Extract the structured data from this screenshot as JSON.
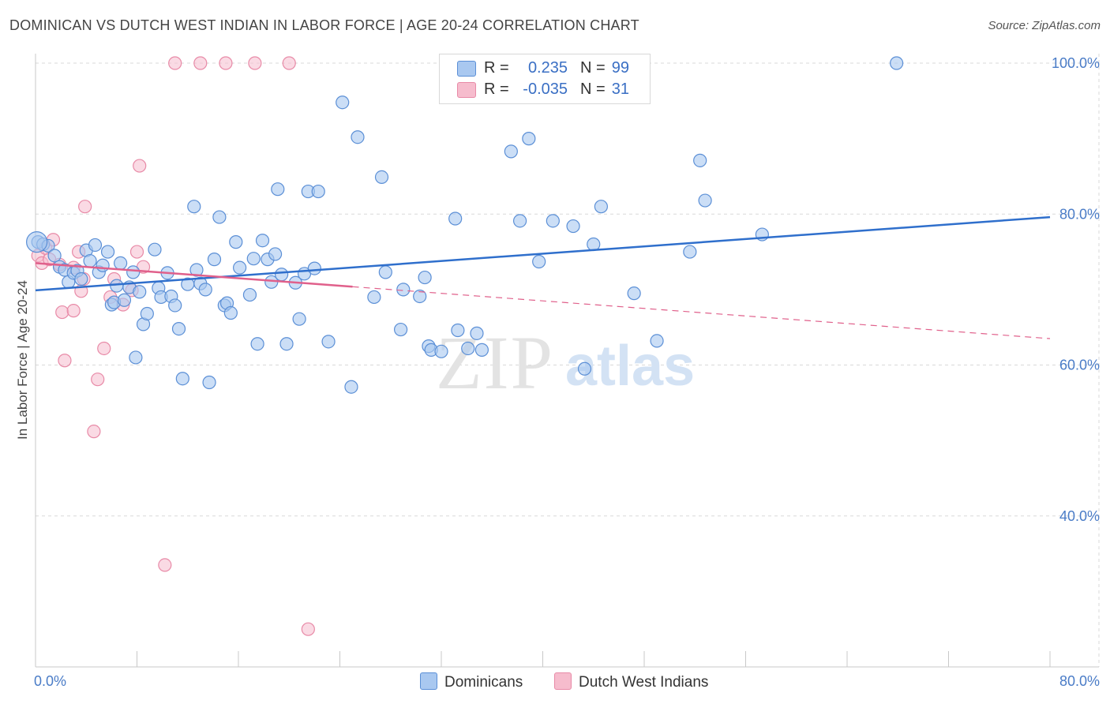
{
  "title": "DOMINICAN VS DUTCH WEST INDIAN IN LABOR FORCE | AGE 20-24 CORRELATION CHART",
  "source": "Source: ZipAtlas.com",
  "watermark": {
    "zip": "ZIP",
    "atlas": "atlas"
  },
  "colors": {
    "blue_fill": "#a9c8f0",
    "blue_stroke": "#5b8fd6",
    "blue_line": "#2f6fcc",
    "pink_fill": "#f6bccd",
    "pink_stroke": "#e88aa7",
    "pink_line": "#e0608b",
    "grid": "#d9d9d9",
    "tick_text": "#4a7cc7"
  },
  "legend": {
    "rows": [
      {
        "series": "Dominicans",
        "r_label": "R =",
        "r_value": "0.235",
        "n_label": "N =",
        "n_value": "99"
      },
      {
        "series": "Dutch West Indians",
        "r_label": "R =",
        "r_value": "-0.035",
        "n_label": "N =",
        "n_value": "31"
      }
    ]
  },
  "bottom_legend": [
    "Dominicans",
    "Dutch West Indians"
  ],
  "chart_data": {
    "type": "scatter",
    "title": "DOMINICAN VS DUTCH WEST INDIAN IN LABOR FORCE | AGE 20-24 CORRELATION CHART",
    "xlabel": "",
    "ylabel": "In Labor Force | Age 20-24",
    "xlim": [
      0,
      80
    ],
    "ylim": [
      20,
      100
    ],
    "x_tick_labels": [
      "0.0%",
      "80.0%"
    ],
    "y_ticks": [
      40,
      60,
      80,
      100
    ],
    "y_tick_labels": [
      "40.0%",
      "60.0%",
      "80.0%",
      "100.0%"
    ],
    "grid": true,
    "series": [
      {
        "name": "Dominicans",
        "r": 0.235,
        "n": 99,
        "trend": {
          "x": [
            0,
            80
          ],
          "y": [
            69.9,
            79.6
          ],
          "style": "solid"
        },
        "points": [
          [
            0.2,
            76.3
          ],
          [
            0.6,
            76.0
          ],
          [
            1.0,
            75.8
          ],
          [
            1.5,
            74.5
          ],
          [
            1.9,
            73.0
          ],
          [
            2.3,
            72.6
          ],
          [
            2.6,
            71.0
          ],
          [
            3.0,
            72.2
          ],
          [
            3.3,
            72.5
          ],
          [
            3.6,
            71.4
          ],
          [
            4.0,
            75.2
          ],
          [
            4.3,
            73.8
          ],
          [
            4.7,
            75.9
          ],
          [
            5.0,
            72.3
          ],
          [
            5.3,
            73.2
          ],
          [
            5.7,
            75.0
          ],
          [
            6.0,
            68.0
          ],
          [
            6.2,
            68.3
          ],
          [
            6.4,
            70.5
          ],
          [
            6.7,
            73.5
          ],
          [
            7.0,
            68.6
          ],
          [
            7.4,
            70.3
          ],
          [
            7.7,
            72.3
          ],
          [
            7.9,
            61.0
          ],
          [
            8.2,
            69.7
          ],
          [
            8.5,
            65.4
          ],
          [
            8.8,
            66.8
          ],
          [
            9.4,
            75.3
          ],
          [
            9.7,
            70.2
          ],
          [
            9.9,
            69.0
          ],
          [
            10.4,
            72.2
          ],
          [
            10.7,
            69.1
          ],
          [
            11.0,
            67.9
          ],
          [
            11.3,
            64.8
          ],
          [
            11.6,
            58.2
          ],
          [
            12.0,
            70.7
          ],
          [
            12.5,
            81.0
          ],
          [
            12.7,
            72.6
          ],
          [
            13.0,
            70.8
          ],
          [
            13.4,
            70.0
          ],
          [
            13.7,
            57.7
          ],
          [
            14.1,
            74.0
          ],
          [
            14.5,
            79.6
          ],
          [
            14.9,
            67.9
          ],
          [
            15.1,
            68.2
          ],
          [
            15.4,
            66.9
          ],
          [
            15.8,
            76.3
          ],
          [
            16.1,
            72.9
          ],
          [
            16.9,
            69.3
          ],
          [
            17.2,
            74.1
          ],
          [
            17.5,
            62.8
          ],
          [
            17.9,
            76.5
          ],
          [
            18.3,
            74.0
          ],
          [
            18.6,
            71.0
          ],
          [
            18.9,
            74.7
          ],
          [
            19.1,
            83.3
          ],
          [
            19.4,
            72.0
          ],
          [
            19.8,
            62.8
          ],
          [
            20.5,
            70.9
          ],
          [
            20.8,
            66.1
          ],
          [
            21.2,
            72.1
          ],
          [
            21.5,
            83.0
          ],
          [
            22.3,
            83.0
          ],
          [
            22.0,
            72.8
          ],
          [
            23.1,
            63.1
          ],
          [
            24.2,
            94.8
          ],
          [
            24.9,
            57.1
          ],
          [
            25.4,
            90.2
          ],
          [
            26.7,
            69.0
          ],
          [
            27.3,
            84.9
          ],
          [
            27.6,
            72.3
          ],
          [
            28.8,
            64.7
          ],
          [
            29.0,
            70.0
          ],
          [
            30.3,
            69.1
          ],
          [
            30.7,
            71.6
          ],
          [
            31.0,
            62.5
          ],
          [
            31.2,
            62.0
          ],
          [
            32.0,
            61.8
          ],
          [
            33.1,
            79.4
          ],
          [
            33.3,
            64.6
          ],
          [
            34.1,
            62.2
          ],
          [
            34.8,
            64.2
          ],
          [
            35.2,
            62.0
          ],
          [
            37.5,
            88.3
          ],
          [
            38.2,
            79.1
          ],
          [
            38.9,
            90.0
          ],
          [
            39.7,
            73.7
          ],
          [
            40.8,
            79.1
          ],
          [
            42.4,
            78.4
          ],
          [
            43.3,
            59.5
          ],
          [
            44.0,
            76.0
          ],
          [
            44.6,
            81.0
          ],
          [
            47.2,
            69.5
          ],
          [
            49.0,
            63.2
          ],
          [
            51.6,
            75.0
          ],
          [
            52.4,
            87.1
          ],
          [
            52.8,
            81.8
          ],
          [
            57.3,
            77.3
          ],
          [
            67.9,
            100.0
          ]
        ]
      },
      {
        "name": "Dutch West Indians",
        "r": -0.035,
        "n": 31,
        "trend": {
          "x": [
            0,
            80
          ],
          "y": [
            73.5,
            63.5
          ],
          "style": "solid-then-dashed",
          "solid_until_x": 25
        },
        "points": [
          [
            0.2,
            74.5
          ],
          [
            0.5,
            73.5
          ],
          [
            0.8,
            75.5
          ],
          [
            1.1,
            74.0
          ],
          [
            1.4,
            76.6
          ],
          [
            1.9,
            73.3
          ],
          [
            2.1,
            67.0
          ],
          [
            2.3,
            60.6
          ],
          [
            3.0,
            72.9
          ],
          [
            3.0,
            67.2
          ],
          [
            3.4,
            75.0
          ],
          [
            3.6,
            69.8
          ],
          [
            3.8,
            71.4
          ],
          [
            3.9,
            81.0
          ],
          [
            4.6,
            51.2
          ],
          [
            4.9,
            58.1
          ],
          [
            5.4,
            62.2
          ],
          [
            5.9,
            69.0
          ],
          [
            6.2,
            71.4
          ],
          [
            6.9,
            68.0
          ],
          [
            7.6,
            69.9
          ],
          [
            8.0,
            75.0
          ],
          [
            8.2,
            86.4
          ],
          [
            8.5,
            73.0
          ],
          [
            11.0,
            100.0
          ],
          [
            13.0,
            100.0
          ],
          [
            15.0,
            100.0
          ],
          [
            17.3,
            100.0
          ],
          [
            20.0,
            100.0
          ],
          [
            10.2,
            33.5
          ],
          [
            21.5,
            25.0
          ]
        ]
      }
    ]
  }
}
